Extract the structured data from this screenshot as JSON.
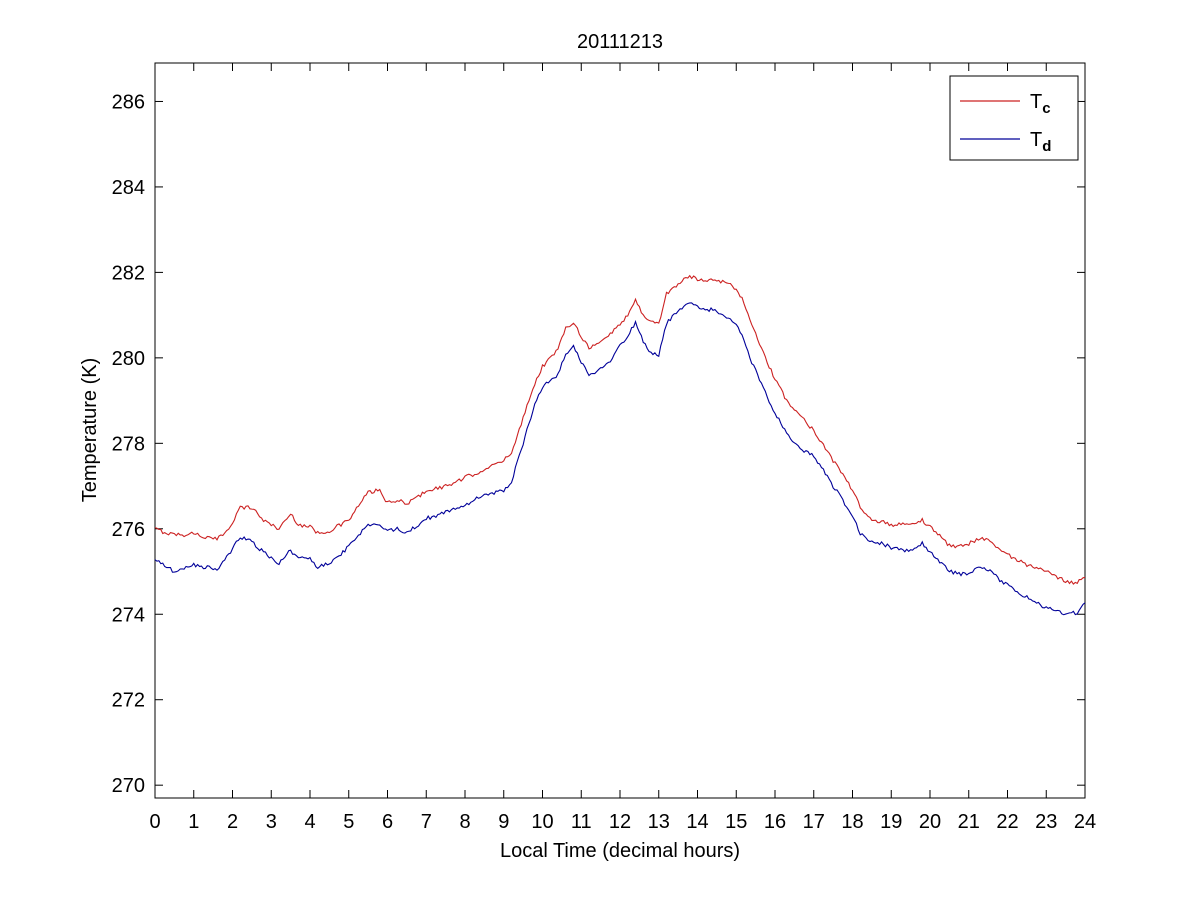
{
  "figure": {
    "title": "20111213",
    "xlabel": "Local Time (decimal hours)",
    "ylabel": "Temperature (K)",
    "background": "#ffffff",
    "axes_color": "#000000"
  },
  "legend": {
    "entries": [
      {
        "main": "T",
        "sub": "c"
      },
      {
        "main": "T",
        "sub": "d"
      }
    ],
    "position": "top-right"
  },
  "chart_data": {
    "type": "line",
    "title": "20111213",
    "xlabel": "Local Time (decimal hours)",
    "ylabel": "Temperature (K)",
    "xlim": [
      0,
      24
    ],
    "ylim": [
      269.7,
      286.9
    ],
    "xticks": [
      0,
      1,
      2,
      3,
      4,
      5,
      6,
      7,
      8,
      9,
      10,
      11,
      12,
      13,
      14,
      15,
      16,
      17,
      18,
      19,
      20,
      21,
      22,
      23,
      24
    ],
    "yticks": [
      270,
      272,
      274,
      276,
      278,
      280,
      282,
      284,
      286
    ],
    "grid": false,
    "legend_position": "top-right",
    "noise_amplitude": 0.045,
    "sample_step": 0.05,
    "series": [
      {
        "name": "T_c",
        "label_main": "T",
        "label_sub": "c",
        "color": "#cc2222",
        "points": [
          [
            0,
            276.0
          ],
          [
            0.3,
            275.9
          ],
          [
            0.7,
            275.85
          ],
          [
            1,
            275.9
          ],
          [
            1.3,
            275.8
          ],
          [
            1.6,
            275.75
          ],
          [
            1.9,
            276.0
          ],
          [
            2.2,
            276.5
          ],
          [
            2.5,
            276.5
          ],
          [
            2.8,
            276.2
          ],
          [
            3,
            276.1
          ],
          [
            3.2,
            276.0
          ],
          [
            3.5,
            276.35
          ],
          [
            3.7,
            276.1
          ],
          [
            4,
            276.05
          ],
          [
            4.2,
            275.9
          ],
          [
            4.5,
            275.95
          ],
          [
            4.8,
            276.1
          ],
          [
            5,
            276.2
          ],
          [
            5.3,
            276.6
          ],
          [
            5.5,
            276.85
          ],
          [
            5.8,
            276.9
          ],
          [
            6,
            276.6
          ],
          [
            6.3,
            276.65
          ],
          [
            6.5,
            276.6
          ],
          [
            6.8,
            276.75
          ],
          [
            7,
            276.9
          ],
          [
            7.3,
            276.95
          ],
          [
            7.5,
            277.0
          ],
          [
            7.8,
            277.1
          ],
          [
            8,
            277.2
          ],
          [
            8.3,
            277.3
          ],
          [
            8.5,
            277.4
          ],
          [
            8.8,
            277.5
          ],
          [
            9,
            277.6
          ],
          [
            9.2,
            277.8
          ],
          [
            9.4,
            278.3
          ],
          [
            9.6,
            278.9
          ],
          [
            9.8,
            279.4
          ],
          [
            10,
            279.8
          ],
          [
            10.2,
            280.0
          ],
          [
            10.4,
            280.2
          ],
          [
            10.6,
            280.7
          ],
          [
            10.8,
            280.85
          ],
          [
            11,
            280.5
          ],
          [
            11.2,
            280.25
          ],
          [
            11.4,
            280.3
          ],
          [
            11.6,
            280.45
          ],
          [
            11.8,
            280.6
          ],
          [
            12,
            280.8
          ],
          [
            12.2,
            281.0
          ],
          [
            12.4,
            281.35
          ],
          [
            12.6,
            281.0
          ],
          [
            12.8,
            280.85
          ],
          [
            13,
            280.8
          ],
          [
            13.2,
            281.5
          ],
          [
            13.4,
            281.65
          ],
          [
            13.6,
            281.8
          ],
          [
            13.8,
            281.9
          ],
          [
            14,
            281.85
          ],
          [
            14.2,
            281.8
          ],
          [
            14.4,
            281.85
          ],
          [
            14.6,
            281.8
          ],
          [
            14.8,
            281.75
          ],
          [
            15,
            281.6
          ],
          [
            15.2,
            281.3
          ],
          [
            15.4,
            280.8
          ],
          [
            15.6,
            280.3
          ],
          [
            15.8,
            279.9
          ],
          [
            16,
            279.5
          ],
          [
            16.3,
            279.0
          ],
          [
            16.5,
            278.8
          ],
          [
            16.8,
            278.5
          ],
          [
            17,
            278.3
          ],
          [
            17.3,
            277.9
          ],
          [
            17.5,
            277.6
          ],
          [
            17.8,
            277.2
          ],
          [
            18,
            276.9
          ],
          [
            18.2,
            276.5
          ],
          [
            18.4,
            276.25
          ],
          [
            18.6,
            276.2
          ],
          [
            18.8,
            276.15
          ],
          [
            19,
            276.1
          ],
          [
            19.3,
            276.1
          ],
          [
            19.5,
            276.1
          ],
          [
            19.8,
            276.2
          ],
          [
            20,
            276.05
          ],
          [
            20.3,
            275.8
          ],
          [
            20.5,
            275.6
          ],
          [
            20.8,
            275.6
          ],
          [
            21,
            275.65
          ],
          [
            21.3,
            275.8
          ],
          [
            21.5,
            275.75
          ],
          [
            21.8,
            275.5
          ],
          [
            22,
            275.4
          ],
          [
            22.3,
            275.25
          ],
          [
            22.5,
            275.15
          ],
          [
            22.8,
            275.05
          ],
          [
            23,
            275.0
          ],
          [
            23.3,
            274.85
          ],
          [
            23.6,
            274.75
          ],
          [
            23.8,
            274.75
          ],
          [
            24,
            274.9
          ]
        ]
      },
      {
        "name": "T_d",
        "label_main": "T",
        "label_sub": "d",
        "color": "#000099",
        "points": [
          [
            0,
            275.3
          ],
          [
            0.3,
            275.1
          ],
          [
            0.5,
            275.0
          ],
          [
            0.7,
            275.05
          ],
          [
            1,
            275.15
          ],
          [
            1.3,
            275.1
          ],
          [
            1.6,
            275.05
          ],
          [
            1.9,
            275.4
          ],
          [
            2.2,
            275.8
          ],
          [
            2.5,
            275.7
          ],
          [
            2.8,
            275.45
          ],
          [
            3,
            275.3
          ],
          [
            3.2,
            275.2
          ],
          [
            3.5,
            275.5
          ],
          [
            3.7,
            275.3
          ],
          [
            4,
            275.3
          ],
          [
            4.2,
            275.1
          ],
          [
            4.5,
            275.2
          ],
          [
            4.8,
            275.4
          ],
          [
            5,
            275.6
          ],
          [
            5.3,
            275.9
          ],
          [
            5.5,
            276.1
          ],
          [
            5.8,
            276.1
          ],
          [
            6,
            275.95
          ],
          [
            6.3,
            276.0
          ],
          [
            6.5,
            275.9
          ],
          [
            6.8,
            276.1
          ],
          [
            7,
            276.25
          ],
          [
            7.3,
            276.3
          ],
          [
            7.5,
            276.4
          ],
          [
            7.8,
            276.5
          ],
          [
            8,
            276.55
          ],
          [
            8.3,
            276.7
          ],
          [
            8.5,
            276.8
          ],
          [
            8.8,
            276.85
          ],
          [
            9,
            276.9
          ],
          [
            9.2,
            277.1
          ],
          [
            9.4,
            277.7
          ],
          [
            9.6,
            278.3
          ],
          [
            9.8,
            278.9
          ],
          [
            10,
            279.3
          ],
          [
            10.2,
            279.5
          ],
          [
            10.4,
            279.6
          ],
          [
            10.6,
            280.1
          ],
          [
            10.8,
            280.25
          ],
          [
            11,
            279.9
          ],
          [
            11.2,
            279.6
          ],
          [
            11.4,
            279.65
          ],
          [
            11.6,
            279.8
          ],
          [
            11.8,
            280.0
          ],
          [
            12,
            280.3
          ],
          [
            12.2,
            280.5
          ],
          [
            12.4,
            280.85
          ],
          [
            12.6,
            280.4
          ],
          [
            12.8,
            280.1
          ],
          [
            13,
            280.05
          ],
          [
            13.2,
            280.8
          ],
          [
            13.4,
            281.0
          ],
          [
            13.6,
            281.15
          ],
          [
            13.8,
            281.3
          ],
          [
            14,
            281.2
          ],
          [
            14.2,
            281.1
          ],
          [
            14.4,
            281.15
          ],
          [
            14.6,
            281.05
          ],
          [
            14.8,
            280.95
          ],
          [
            15,
            280.8
          ],
          [
            15.2,
            280.4
          ],
          [
            15.4,
            279.9
          ],
          [
            15.6,
            279.5
          ],
          [
            15.8,
            279.1
          ],
          [
            16,
            278.7
          ],
          [
            16.3,
            278.25
          ],
          [
            16.5,
            278.0
          ],
          [
            16.8,
            277.8
          ],
          [
            17,
            277.7
          ],
          [
            17.3,
            277.3
          ],
          [
            17.5,
            277.0
          ],
          [
            17.8,
            276.6
          ],
          [
            18,
            276.3
          ],
          [
            18.2,
            275.9
          ],
          [
            18.4,
            275.75
          ],
          [
            18.6,
            275.7
          ],
          [
            18.8,
            275.65
          ],
          [
            19,
            275.55
          ],
          [
            19.3,
            275.5
          ],
          [
            19.5,
            275.5
          ],
          [
            19.8,
            275.65
          ],
          [
            20,
            275.45
          ],
          [
            20.3,
            275.2
          ],
          [
            20.5,
            275.0
          ],
          [
            20.8,
            274.95
          ],
          [
            21,
            274.95
          ],
          [
            21.3,
            275.1
          ],
          [
            21.5,
            275.05
          ],
          [
            21.8,
            274.8
          ],
          [
            22,
            274.7
          ],
          [
            22.3,
            274.5
          ],
          [
            22.5,
            274.4
          ],
          [
            22.8,
            274.25
          ],
          [
            23,
            274.15
          ],
          [
            23.3,
            274.05
          ],
          [
            23.6,
            274.0
          ],
          [
            23.8,
            274.05
          ],
          [
            24,
            274.3
          ]
        ]
      }
    ]
  }
}
